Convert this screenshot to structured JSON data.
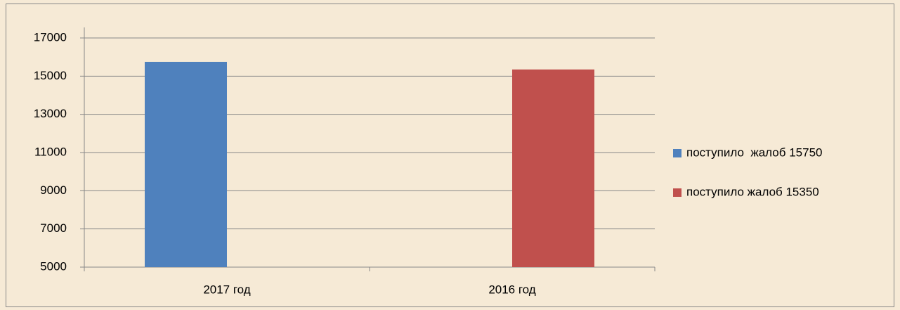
{
  "chart_data": {
    "type": "bar",
    "categories": [
      "2017 год",
      "2016 год"
    ],
    "series": [
      {
        "name": "поступило  жалоб 15750",
        "color": "#4f81bd",
        "values": [
          15750,
          null
        ]
      },
      {
        "name": "поступило жалоб 15350",
        "color": "#c0504d",
        "values": [
          null,
          15350
        ]
      }
    ],
    "ylim": [
      5000,
      17000
    ],
    "yticks": [
      5000,
      7000,
      9000,
      11000,
      13000,
      15000,
      17000
    ],
    "grid": true,
    "legend": "right"
  }
}
